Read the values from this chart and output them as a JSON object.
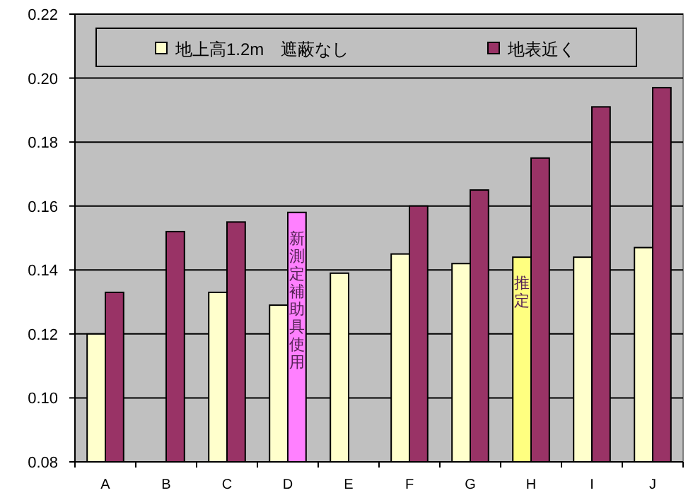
{
  "chart_data": {
    "type": "bar",
    "categories": [
      "A",
      "B",
      "C",
      "D",
      "E",
      "F",
      "G",
      "H",
      "I",
      "J"
    ],
    "series": [
      {
        "name": "地上高1.2m　遮蔽なし",
        "color": "#ffffcc",
        "colors": [
          "#ffffcc",
          "#ffffcc",
          "#ffffcc",
          "#ffffcc",
          "#ffffcc",
          "#ffffcc",
          "#ffffcc",
          "#ffff80",
          "#ffffcc",
          "#ffffcc"
        ],
        "values": [
          0.12,
          null,
          0.133,
          0.129,
          0.139,
          0.145,
          0.142,
          0.144,
          0.144,
          0.147
        ]
      },
      {
        "name": "地表近く",
        "color": "#993366",
        "colors": [
          "#993366",
          "#993366",
          "#993366",
          "#ff80ff",
          "#993366",
          "#993366",
          "#993366",
          "#993366",
          "#993366",
          "#993366"
        ],
        "values": [
          0.133,
          0.152,
          0.155,
          0.158,
          null,
          0.16,
          0.165,
          0.175,
          0.191,
          0.197
        ]
      }
    ],
    "ylim": [
      0.08,
      0.22
    ],
    "yticks": [
      {
        "value": 0.08,
        "label": "0.08"
      },
      {
        "value": 0.1,
        "label": "0.10"
      },
      {
        "value": 0.12,
        "label": "0.12"
      },
      {
        "value": 0.14,
        "label": "0.14"
      },
      {
        "value": 0.16,
        "label": "0.16"
      },
      {
        "value": 0.18,
        "label": "0.18"
      },
      {
        "value": 0.2,
        "label": "0.20"
      },
      {
        "value": 0.22,
        "label": "0.22"
      }
    ],
    "grid": "y",
    "legend": "top",
    "annotations": [
      {
        "text": "新測定補助具使用",
        "x": "D",
        "y": 0.158
      },
      {
        "text": "推定",
        "x": "H",
        "y": 0.144
      }
    ]
  }
}
